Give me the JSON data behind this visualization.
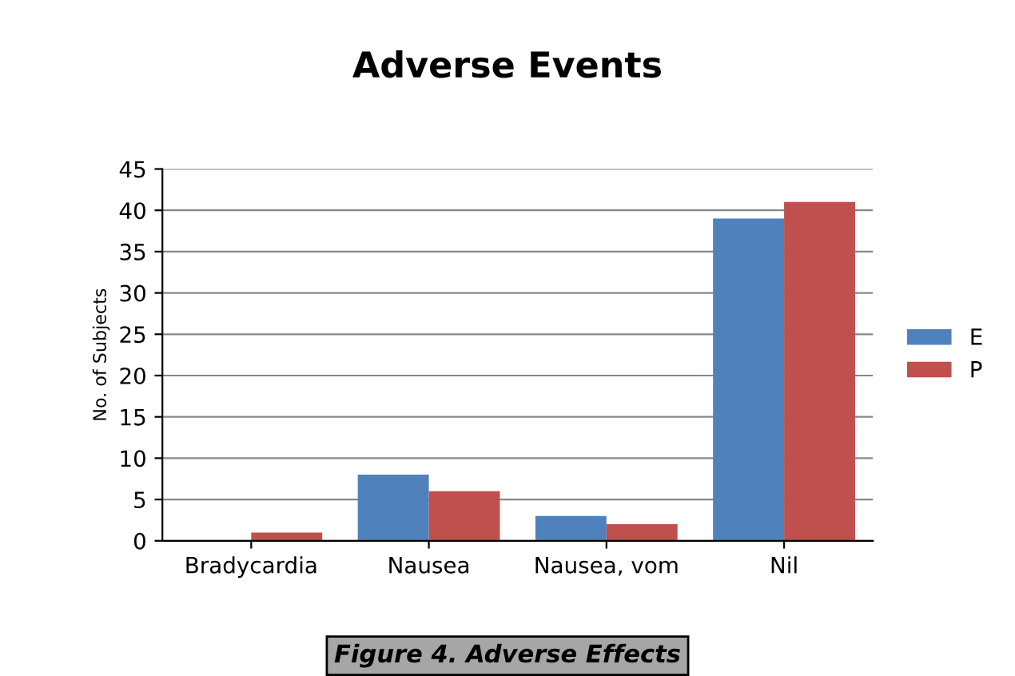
{
  "chart_data": {
    "type": "bar",
    "title": "Adverse Events",
    "ylabel": "No. of Subjects",
    "categories": [
      "Bradycardia",
      "Nausea",
      "Nausea, vom",
      "Nil"
    ],
    "series": [
      {
        "name": "E",
        "color": "#4f81bd",
        "values": [
          0,
          8,
          3,
          39
        ]
      },
      {
        "name": "P",
        "color": "#c0504d",
        "values": [
          1,
          6,
          2,
          41
        ]
      }
    ],
    "ylim": [
      0,
      45
    ],
    "yticks": [
      0,
      5,
      10,
      15,
      20,
      25,
      30,
      35,
      40,
      45
    ],
    "grid": "y",
    "legend": "right",
    "annotations": [
      "Figure 4. Adverse Effects"
    ]
  }
}
